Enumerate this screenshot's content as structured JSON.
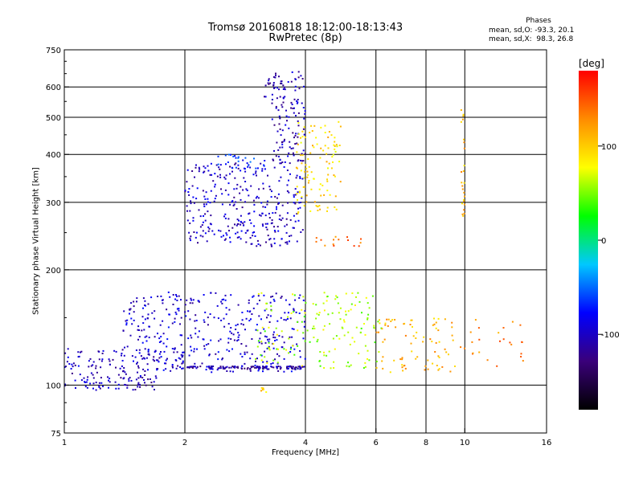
{
  "header": {
    "title_line1": "Tromsø 20160818 18:12:00-18:13:43",
    "title_line2": "RwPretec (8p)"
  },
  "phase_info": {
    "heading": "Phases",
    "line_o": "mean, sd,O: -93.3, 20.1",
    "line_x": "mean, sd,X:  98.3, 26.8"
  },
  "chart_data": {
    "type": "scatter",
    "title": "Tromsø 20160818 18:12:00-18:13:43",
    "subtitle": "RwPretec (8p)",
    "xlabel": "Frequency [MHz]",
    "ylabel": "Stationary phase Virtual Height [km]",
    "x_scale": "log",
    "y_scale": "log",
    "xlim": [
      1,
      16
    ],
    "ylim": [
      75,
      750
    ],
    "x_ticks": [
      1,
      2,
      4,
      6,
      8,
      10,
      16
    ],
    "y_ticks": [
      75,
      100,
      200,
      300,
      400,
      500,
      600,
      750
    ],
    "grid_x": [
      2,
      4,
      6,
      8,
      10
    ],
    "grid_y": [
      100,
      200,
      300,
      400,
      500,
      600
    ],
    "colorbar": {
      "label": "[deg]",
      "range": [
        -180,
        180
      ],
      "ticks": [
        100,
        0,
        -100
      ],
      "colors": [
        "#000000",
        "#3a007a",
        "#0000ff",
        "#00c8ff",
        "#00ff00",
        "#ffff00",
        "#ff8c00",
        "#ff0000"
      ]
    },
    "series": [
      {
        "x_range": [
          1.0,
          1.7
        ],
        "y_range": [
          97,
          108
        ],
        "phase": -105,
        "count": 80
      },
      {
        "x_range": [
          1.0,
          2.0
        ],
        "y_range": [
          110,
          125
        ],
        "phase": -100,
        "count": 90
      },
      {
        "x_range": [
          1.4,
          4.0
        ],
        "y_range": [
          108,
          175
        ],
        "phase": -95,
        "count": 380
      },
      {
        "x_range": [
          3.0,
          6.2
        ],
        "y_range": [
          110,
          175
        ],
        "phase": 60,
        "count": 160
      },
      {
        "x_range": [
          6.0,
          9.5
        ],
        "y_range": [
          108,
          150
        ],
        "phase": 110,
        "count": 80
      },
      {
        "x_range": [
          9.5,
          14.0
        ],
        "y_range": [
          112,
          150
        ],
        "phase": 130,
        "count": 25
      },
      {
        "x_range": [
          1.9,
          4.0
        ],
        "y_range": [
          110,
          112
        ],
        "phase": -110,
        "count": 120
      },
      {
        "x_range": [
          2.0,
          3.95
        ],
        "y_range": [
          230,
          380
        ],
        "phase": -100,
        "count": 320
      },
      {
        "x_range": [
          3.3,
          4.0
        ],
        "y_range": [
          380,
          660
        ],
        "phase": -105,
        "count": 110
      },
      {
        "x_range": [
          3.8,
          4.9
        ],
        "y_range": [
          280,
          490
        ],
        "phase": 95,
        "count": 110
      },
      {
        "x_range": [
          2.4,
          3.2
        ],
        "y_range": [
          365,
          400
        ],
        "phase": -70,
        "count": 30
      },
      {
        "x_range": [
          3.15,
          3.55
        ],
        "y_range": [
          560,
          650
        ],
        "phase": -110,
        "count": 25
      },
      {
        "x_range": [
          9.8,
          10.0
        ],
        "y_range": [
          270,
          540
        ],
        "phase": 110,
        "count": 25
      },
      {
        "x_range": [
          4.2,
          5.6
        ],
        "y_range": [
          230,
          245
        ],
        "phase": 140,
        "count": 15
      },
      {
        "x_range": [
          3.1,
          3.2
        ],
        "y_range": [
          94,
          100
        ],
        "phase": 95,
        "count": 6
      }
    ]
  }
}
